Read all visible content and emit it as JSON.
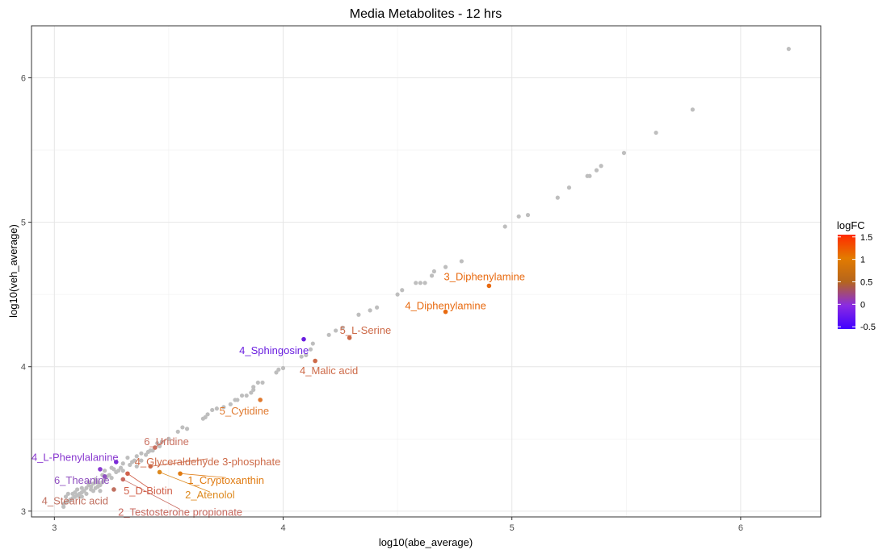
{
  "chart_data": {
    "type": "scatter",
    "title": "Media Metabolites - 12 hrs",
    "xlabel": "log10(abe_average)",
    "ylabel": "log10(veh_average)",
    "xlim": [
      2.9,
      6.35
    ],
    "ylim": [
      2.96,
      6.36
    ],
    "xticks": [
      3,
      4,
      5,
      6
    ],
    "yticks": [
      3,
      4,
      5,
      6
    ],
    "grid": true,
    "legend": {
      "title": "logFC",
      "placement": "right",
      "range": [
        -0.55,
        1.55
      ],
      "ticks": [
        "1.5",
        "1",
        "0.5",
        "0",
        "-0.5"
      ],
      "tick_values": [
        1.5,
        1.0,
        0.5,
        0.0,
        -0.5
      ],
      "gradient": [
        "#4000ff",
        "#8a2be2",
        "#b5651d",
        "#e37b00",
        "#ff2a00"
      ]
    },
    "background_color": "#bebebe",
    "background_points": [
      [
        6.21,
        6.2
      ],
      [
        5.79,
        5.78
      ],
      [
        5.63,
        5.62
      ],
      [
        5.49,
        5.48
      ],
      [
        5.39,
        5.39
      ],
      [
        5.37,
        5.36
      ],
      [
        5.34,
        5.32
      ],
      [
        5.33,
        5.32
      ],
      [
        5.25,
        5.24
      ],
      [
        5.2,
        5.17
      ],
      [
        5.07,
        5.05
      ],
      [
        5.03,
        5.04
      ],
      [
        4.97,
        4.97
      ],
      [
        4.78,
        4.73
      ],
      [
        4.71,
        4.69
      ],
      [
        4.66,
        4.66
      ],
      [
        4.65,
        4.63
      ],
      [
        4.62,
        4.58
      ],
      [
        4.6,
        4.58
      ],
      [
        4.58,
        4.58
      ],
      [
        4.52,
        4.53
      ],
      [
        4.5,
        4.5
      ],
      [
        4.41,
        4.41
      ],
      [
        4.38,
        4.39
      ],
      [
        4.33,
        4.36
      ],
      [
        4.26,
        4.27
      ],
      [
        4.23,
        4.25
      ],
      [
        4.2,
        4.22
      ],
      [
        4.13,
        4.16
      ],
      [
        4.12,
        4.12
      ],
      [
        4.1,
        4.08
      ],
      [
        4.08,
        4.07
      ],
      [
        4.0,
        3.99
      ],
      [
        3.98,
        3.98
      ],
      [
        3.97,
        3.96
      ],
      [
        3.91,
        3.89
      ],
      [
        3.89,
        3.89
      ],
      [
        3.87,
        3.86
      ],
      [
        3.87,
        3.84
      ],
      [
        3.86,
        3.82
      ],
      [
        3.84,
        3.8
      ],
      [
        3.82,
        3.8
      ],
      [
        3.8,
        3.77
      ],
      [
        3.79,
        3.77
      ],
      [
        3.77,
        3.74
      ],
      [
        3.74,
        3.72
      ],
      [
        3.71,
        3.71
      ],
      [
        3.69,
        3.7
      ],
      [
        3.67,
        3.67
      ],
      [
        3.66,
        3.65
      ],
      [
        3.65,
        3.64
      ],
      [
        3.58,
        3.57
      ],
      [
        3.56,
        3.58
      ],
      [
        3.54,
        3.55
      ],
      [
        3.5,
        3.5
      ],
      [
        3.47,
        3.48
      ],
      [
        3.45,
        3.47
      ],
      [
        3.44,
        3.44
      ],
      [
        3.42,
        3.42
      ],
      [
        3.41,
        3.41
      ],
      [
        3.4,
        3.39
      ],
      [
        3.38,
        3.4
      ],
      [
        3.36,
        3.38
      ],
      [
        3.35,
        3.35
      ],
      [
        3.34,
        3.34
      ],
      [
        3.33,
        3.32
      ],
      [
        3.32,
        3.37
      ],
      [
        3.3,
        3.33
      ],
      [
        3.29,
        3.3
      ],
      [
        3.28,
        3.28
      ],
      [
        3.27,
        3.27
      ],
      [
        3.26,
        3.29
      ],
      [
        3.25,
        3.23
      ],
      [
        3.24,
        3.25
      ],
      [
        3.23,
        3.24
      ],
      [
        3.22,
        3.22
      ],
      [
        3.21,
        3.2
      ],
      [
        3.2,
        3.18
      ],
      [
        3.19,
        3.2
      ],
      [
        3.18,
        3.2
      ],
      [
        3.17,
        3.19
      ],
      [
        3.16,
        3.17
      ],
      [
        3.16,
        3.15
      ],
      [
        3.15,
        3.18
      ],
      [
        3.14,
        3.16
      ],
      [
        3.13,
        3.14
      ],
      [
        3.12,
        3.13
      ],
      [
        3.11,
        3.12
      ],
      [
        3.1,
        3.11
      ],
      [
        3.09,
        3.13
      ],
      [
        3.09,
        3.1
      ],
      [
        3.08,
        3.09
      ],
      [
        3.07,
        3.08
      ],
      [
        3.06,
        3.07
      ],
      [
        3.05,
        3.1
      ],
      [
        3.05,
        3.06
      ],
      [
        3.04,
        3.05
      ],
      [
        3.04,
        3.03
      ],
      [
        3.12,
        3.1
      ],
      [
        3.14,
        3.12
      ],
      [
        3.18,
        3.16
      ],
      [
        3.2,
        3.14
      ],
      [
        3.22,
        3.28
      ],
      [
        3.25,
        3.3
      ],
      [
        3.3,
        3.28
      ],
      [
        3.36,
        3.31
      ],
      [
        3.43,
        3.42
      ],
      [
        3.46,
        3.45
      ],
      [
        3.38,
        3.35
      ],
      [
        3.18,
        3.22
      ],
      [
        3.21,
        3.25
      ],
      [
        3.08,
        3.12
      ],
      [
        3.12,
        3.16
      ],
      [
        3.15,
        3.2
      ],
      [
        3.17,
        3.14
      ],
      [
        3.19,
        3.17
      ],
      [
        3.11,
        3.1
      ],
      [
        3.06,
        3.12
      ],
      [
        3.1,
        3.15
      ]
    ],
    "highlighted": [
      {
        "x": 4.9,
        "y": 4.56,
        "logFC": 1.1,
        "color": "#e86a10",
        "label": "3_Diphenylamine",
        "lx": 4.88,
        "ly": 4.62,
        "anchor": "middle"
      },
      {
        "x": 4.71,
        "y": 4.38,
        "logFC": 1.05,
        "color": "#e86a10",
        "label": "4_Diphenylamine",
        "lx": 4.71,
        "ly": 4.42,
        "anchor": "middle"
      },
      {
        "x": 4.29,
        "y": 4.2,
        "logFC": 0.6,
        "color": "#cd6a48",
        "label": "5_L-Serine",
        "lx": 4.36,
        "ly": 4.25,
        "anchor": "middle"
      },
      {
        "x": 4.09,
        "y": 4.19,
        "logFC": -0.4,
        "color": "#6a1ee0",
        "label": "4_Sphingosine",
        "lx": 3.96,
        "ly": 4.11,
        "anchor": "middle"
      },
      {
        "x": 4.14,
        "y": 4.04,
        "logFC": 0.6,
        "color": "#cd6a48",
        "label": "4_Malic acid",
        "lx": 4.2,
        "ly": 3.97,
        "anchor": "middle"
      },
      {
        "x": 3.9,
        "y": 3.77,
        "logFC": 0.8,
        "color": "#e07a30",
        "label": "5_Cytidine",
        "lx": 3.83,
        "ly": 3.69,
        "anchor": "middle"
      },
      {
        "x": 3.44,
        "y": 3.44,
        "logFC": 0.5,
        "color": "#c97060",
        "label": "6_Uridine",
        "lx": 3.49,
        "ly": 3.48,
        "anchor": "middle",
        "lineto": [
          3.44,
          3.44
        ]
      },
      {
        "x": 3.42,
        "y": 3.31,
        "logFC": 0.6,
        "color": "#cd6a48",
        "label": "4_Glyceraldehyde 3-phosphate",
        "lx": 3.67,
        "ly": 3.34,
        "anchor": "middle",
        "lineto": [
          3.42,
          3.31
        ]
      },
      {
        "x": 3.2,
        "y": 3.29,
        "logFC": -0.2,
        "color": "#8a3ad0",
        "label": "4_L-Phenylalanine",
        "lx": 3.09,
        "ly": 3.37,
        "anchor": "middle"
      },
      {
        "x": 3.27,
        "y": 3.34,
        "logFC": -0.3,
        "color": "#7a2ad8",
        "label": "",
        "lx": 0,
        "ly": 0
      },
      {
        "x": 3.55,
        "y": 3.26,
        "logFC": 0.95,
        "color": "#e07a10",
        "label": "1_Cryptoxanthin",
        "lx": 3.75,
        "ly": 3.21,
        "anchor": "middle",
        "lineto": [
          3.55,
          3.26
        ]
      },
      {
        "x": 3.46,
        "y": 3.27,
        "logFC": 0.75,
        "color": "#dd8a20",
        "label": "2_Atenolol",
        "lx": 3.68,
        "ly": 3.11,
        "anchor": "middle",
        "lineto": [
          3.46,
          3.27
        ]
      },
      {
        "x": 3.32,
        "y": 3.26,
        "logFC": 0.35,
        "color": "#d0604a",
        "label": "5_D-Biotin",
        "lx": 3.41,
        "ly": 3.14,
        "anchor": "middle",
        "lineto": [
          3.32,
          3.26
        ]
      },
      {
        "x": 3.3,
        "y": 3.22,
        "logFC": 0.4,
        "color": "#c86a60",
        "label": "2_Testosterone propionate",
        "lx": 3.55,
        "ly": 2.99,
        "anchor": "middle",
        "lineto": [
          3.3,
          3.22
        ]
      },
      {
        "x": 3.26,
        "y": 3.15,
        "logFC": 0.5,
        "color": "#c07060",
        "label": "4_Stearic acid",
        "lx": 3.09,
        "ly": 3.07,
        "anchor": "middle"
      },
      {
        "x": 3.22,
        "y": 3.24,
        "logFC": -0.2,
        "color": "#9050c0",
        "label": "6_Theanine",
        "lx": 3.12,
        "ly": 3.21,
        "anchor": "middle"
      }
    ]
  }
}
